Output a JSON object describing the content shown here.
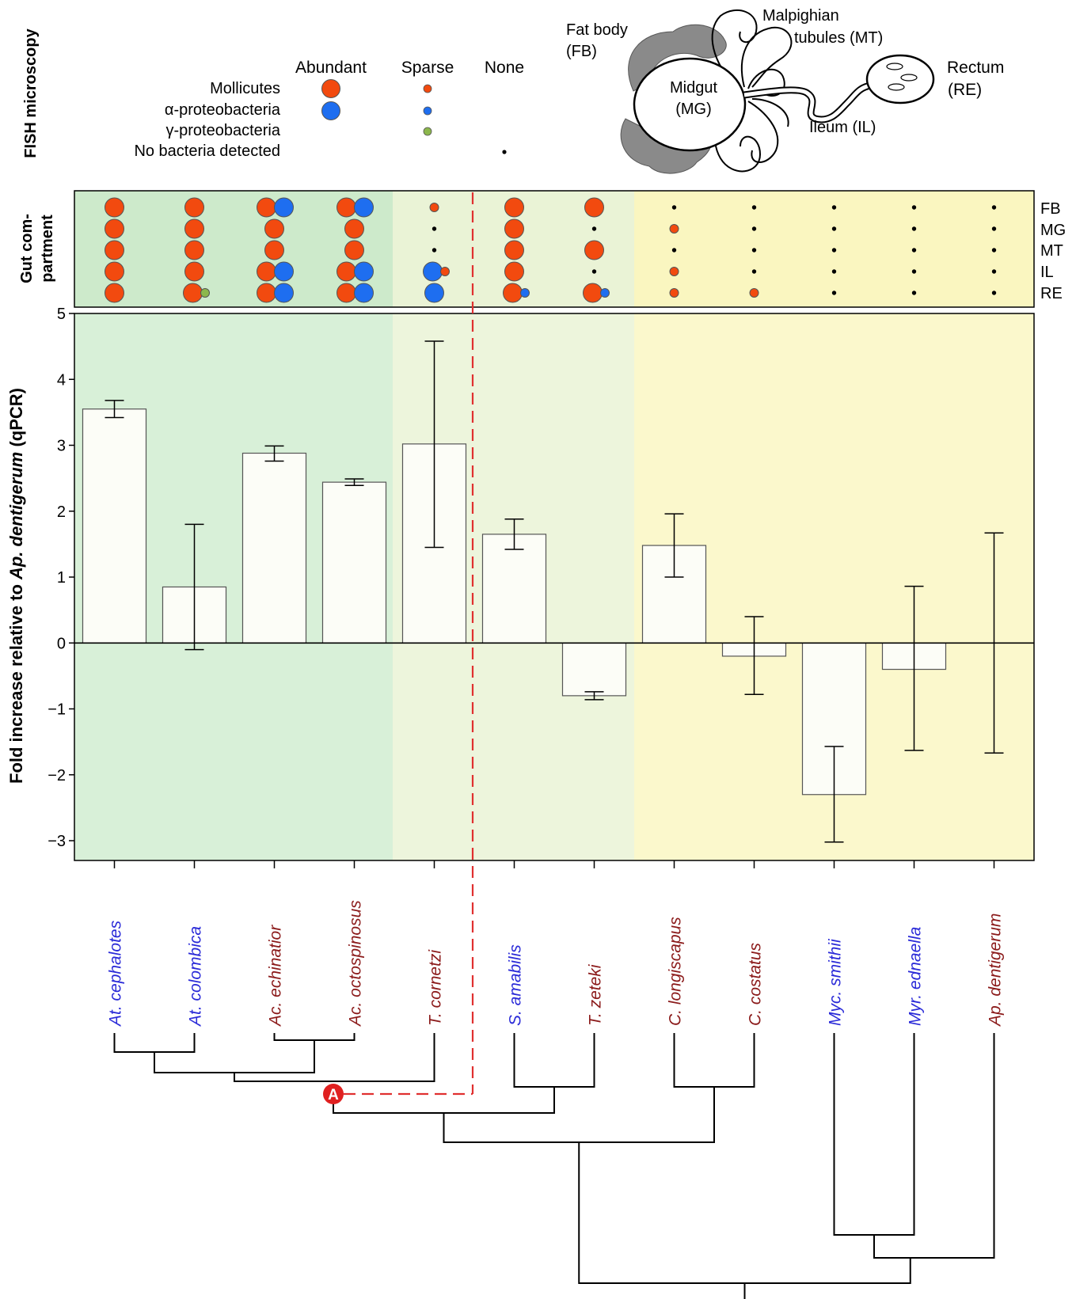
{
  "fish": {
    "title": "FISH microscopy",
    "columns": [
      "Abundant",
      "Sparse",
      "None"
    ],
    "rows": [
      "Mollicutes",
      "α-proteobacteria",
      "γ-proteobacteria",
      "No  bacteria detected"
    ]
  },
  "anatomy": {
    "fat_body": [
      "Fat body",
      "(FB)"
    ],
    "malpighian": [
      "Malpighian",
      "tubules (MT)"
    ],
    "rectum": [
      "Rectum",
      "(RE)"
    ],
    "midgut": [
      "Midgut",
      "(MG)"
    ],
    "ileum": "Ileum (IL)"
  },
  "gut_panel": {
    "ylabel_lines": [
      "Gut com-",
      "partment"
    ],
    "compartments": [
      "FB",
      "MG",
      "MT",
      "IL",
      "RE"
    ]
  },
  "colors": {
    "mollicutes": "#f24a0f",
    "alpha": "#1e6ef0",
    "gamma": "#8cb74c",
    "zone_dark_green": "#d8f0d8",
    "zone_light_green": "#edf5dc",
    "zone_yellow": "#fbf8cc",
    "gut_dark_green": "#cdeacb",
    "gut_light_green": "#eaf3d6",
    "gut_yellow": "#faf6c0",
    "divider_red": "#e03030",
    "label_blue": "#2a2ad8",
    "label_darkred": "#8b1a1a"
  },
  "gut_dots": [
    [
      [
        "M"
      ],
      [
        "M"
      ],
      [
        "M"
      ],
      [
        "M"
      ],
      [
        "M"
      ]
    ],
    [
      [
        "M"
      ],
      [
        "M"
      ],
      [
        "M"
      ],
      [
        "M"
      ],
      [
        "M",
        "g"
      ]
    ],
    [
      [
        "M",
        "A"
      ],
      [
        "M"
      ],
      [
        "M"
      ],
      [
        "M",
        "A"
      ],
      [
        "M",
        "A"
      ]
    ],
    [
      [
        "M",
        "A"
      ],
      [
        "M"
      ],
      [
        "M"
      ],
      [
        "M",
        "A"
      ],
      [
        "M",
        "A"
      ]
    ],
    [
      [
        "m"
      ],
      [
        "n"
      ],
      [
        "n"
      ],
      [
        "A",
        "m"
      ],
      [
        "A"
      ]
    ],
    [
      [
        "M"
      ],
      [
        "M"
      ],
      [
        "M"
      ],
      [
        "M"
      ],
      [
        "M",
        "a"
      ]
    ],
    [
      [
        "M"
      ],
      [
        "n"
      ],
      [
        "M"
      ],
      [
        "n"
      ],
      [
        "M",
        "a"
      ]
    ],
    [
      [
        "n"
      ],
      [
        "m"
      ],
      [
        "n"
      ],
      [
        "m"
      ],
      [
        "m"
      ]
    ],
    [
      [
        "n"
      ],
      [
        "n"
      ],
      [
        "n"
      ],
      [
        "n"
      ],
      [
        "m"
      ]
    ],
    [
      [
        "n"
      ],
      [
        "n"
      ],
      [
        "n"
      ],
      [
        "n"
      ],
      [
        "n"
      ]
    ],
    [
      [
        "n"
      ],
      [
        "n"
      ],
      [
        "n"
      ],
      [
        "n"
      ],
      [
        "n"
      ]
    ],
    [
      [
        "n"
      ],
      [
        "n"
      ],
      [
        "n"
      ],
      [
        "n"
      ],
      [
        "n"
      ]
    ]
  ],
  "chart_data": {
    "type": "bar",
    "ylabel_prefix": "Fold increase relative to ",
    "ylabel_italic": "Ap. dentigerum",
    "ylabel_suffix": " (qPCR)",
    "ylim": [
      -3.3,
      5
    ],
    "yticks": [
      -3,
      -2,
      -1,
      0,
      1,
      2,
      3,
      4,
      5
    ],
    "ytick_labels": [
      "−3",
      "−2",
      "−1",
      "0",
      "1",
      "2",
      "3",
      "4",
      "5"
    ],
    "categories": [
      "At. cephalotes",
      "At. colombica",
      "Ac. echinatior",
      "Ac. octospinosus",
      "T. cornetzi",
      "S. amabilis",
      "T. zeteki",
      "C. longiscapus",
      "C. costatus",
      "Myc. smithii",
      "Myr. ednaella",
      "Ap. dentigerum"
    ],
    "category_colors": [
      "blue",
      "blue",
      "darkred",
      "darkred",
      "darkred",
      "blue",
      "darkred",
      "darkred",
      "darkred",
      "blue",
      "blue",
      "darkred"
    ],
    "values": [
      3.55,
      0.85,
      2.88,
      2.44,
      3.02,
      1.65,
      -0.8,
      1.48,
      -0.2,
      -2.3,
      -0.4,
      0.0
    ],
    "error_low": [
      3.42,
      -0.1,
      2.76,
      2.39,
      1.45,
      1.42,
      -0.86,
      1.0,
      -0.78,
      -3.02,
      -1.63,
      -1.67
    ],
    "error_high": [
      3.68,
      1.8,
      2.99,
      2.49,
      4.58,
      1.88,
      -0.74,
      1.96,
      0.4,
      -1.57,
      0.86,
      1.67
    ]
  },
  "tree": {
    "marker_label": "A"
  }
}
